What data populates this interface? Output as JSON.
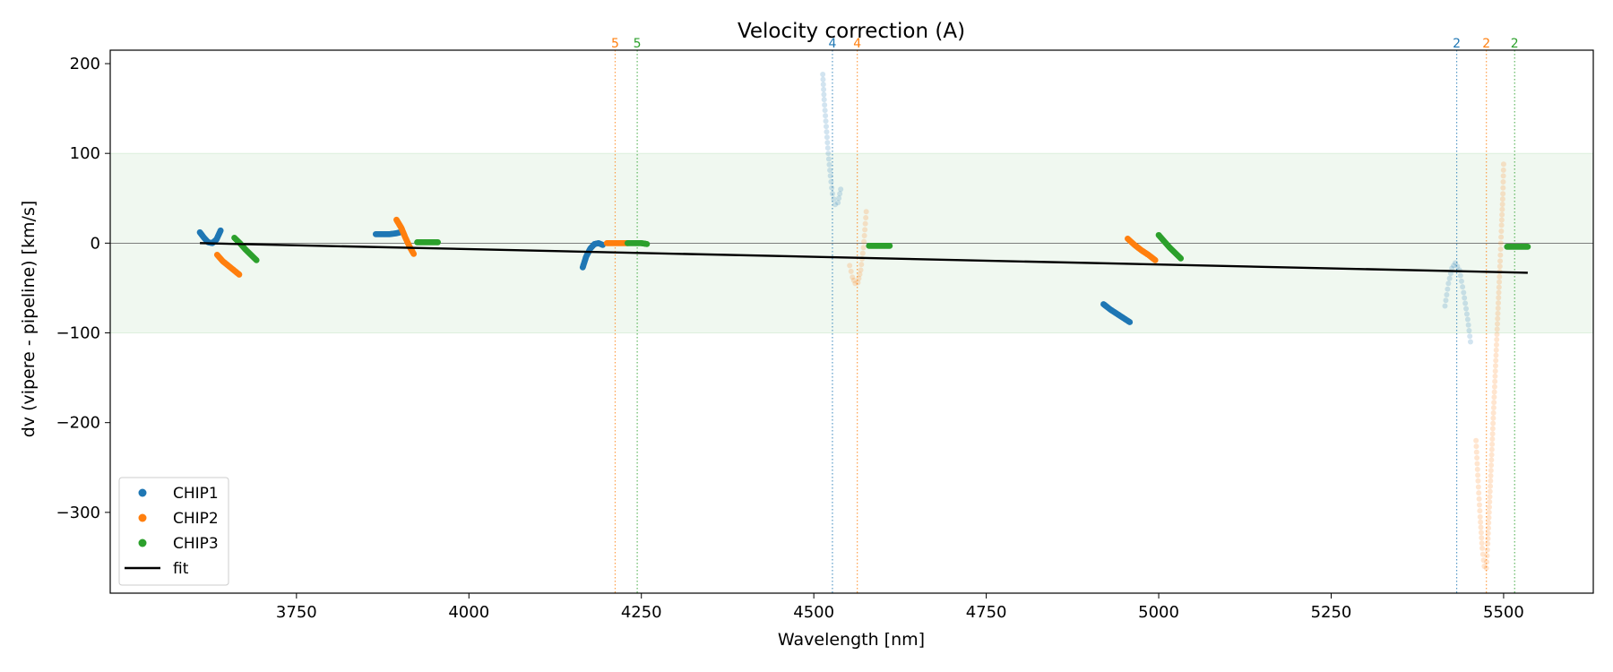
{
  "chart_data": {
    "type": "scatter",
    "title": "Velocity correction (A)",
    "xlabel": "Wavelength [nm]",
    "ylabel": "dv (vipere - pipeline) [km/s]",
    "xlim": [
      3480,
      5630
    ],
    "ylim": [
      -390,
      215
    ],
    "xticks": [
      3750,
      4000,
      4250,
      4500,
      4750,
      5000,
      5250,
      5500
    ],
    "yticks": [
      200,
      100,
      0,
      -100,
      -200,
      -300
    ],
    "ytick_labels": [
      "200",
      "100",
      "0",
      "−100",
      "−200",
      "−300"
    ],
    "tolerance_band": [
      -100,
      100
    ],
    "band_color": "#2ca02c",
    "zero_line": 0,
    "colors": {
      "CHIP1": "#1f77b4",
      "CHIP2": "#ff7f0e",
      "CHIP3": "#2ca02c"
    },
    "segments": [
      {
        "chip": "CHIP1",
        "faded": false,
        "points": [
          [
            3610,
            12
          ],
          [
            3616,
            6
          ],
          [
            3622,
            1
          ],
          [
            3628,
            0
          ],
          [
            3634,
            4
          ],
          [
            3640,
            14
          ]
        ]
      },
      {
        "chip": "CHIP2",
        "faded": false,
        "points": [
          [
            3635,
            -13
          ],
          [
            3643,
            -20
          ],
          [
            3651,
            -25
          ],
          [
            3659,
            -30
          ],
          [
            3667,
            -35
          ]
        ]
      },
      {
        "chip": "CHIP3",
        "faded": false,
        "points": [
          [
            3660,
            6
          ],
          [
            3668,
            0
          ],
          [
            3676,
            -7
          ],
          [
            3684,
            -13
          ],
          [
            3692,
            -19
          ]
        ]
      },
      {
        "chip": "CHIP1",
        "faded": false,
        "points": [
          [
            3865,
            10
          ],
          [
            3875,
            10
          ],
          [
            3885,
            10
          ],
          [
            3895,
            11
          ],
          [
            3900,
            12
          ]
        ]
      },
      {
        "chip": "CHIP2",
        "faded": false,
        "points": [
          [
            3895,
            26
          ],
          [
            3902,
            17
          ],
          [
            3908,
            6
          ],
          [
            3914,
            -4
          ],
          [
            3920,
            -12
          ]
        ]
      },
      {
        "chip": "CHIP3",
        "faded": false,
        "points": [
          [
            3925,
            1
          ],
          [
            3935,
            1
          ],
          [
            3945,
            1
          ],
          [
            3955,
            1
          ]
        ]
      },
      {
        "chip": "CHIP1",
        "faded": false,
        "points": [
          [
            4165,
            -27
          ],
          [
            4170,
            -15
          ],
          [
            4176,
            -6
          ],
          [
            4182,
            -1
          ],
          [
            4188,
            0
          ],
          [
            4194,
            -2
          ]
        ]
      },
      {
        "chip": "CHIP2",
        "faded": false,
        "points": [
          [
            4200,
            0
          ],
          [
            4210,
            0
          ],
          [
            4220,
            0
          ],
          [
            4230,
            0
          ]
        ]
      },
      {
        "chip": "CHIP3",
        "faded": false,
        "points": [
          [
            4230,
            0
          ],
          [
            4240,
            0
          ],
          [
            4250,
            0
          ],
          [
            4258,
            -1
          ]
        ]
      },
      {
        "chip": "CHIP1",
        "faded": true,
        "points": [
          [
            4513,
            188
          ],
          [
            4515,
            160
          ],
          [
            4518,
            130
          ],
          [
            4521,
            100
          ],
          [
            4524,
            75
          ],
          [
            4527,
            55
          ],
          [
            4531,
            43
          ],
          [
            4535,
            45
          ],
          [
            4539,
            60
          ]
        ]
      },
      {
        "chip": "CHIP2",
        "faded": true,
        "points": [
          [
            4552,
            -25
          ],
          [
            4556,
            -38
          ],
          [
            4560,
            -45
          ],
          [
            4564,
            -44
          ],
          [
            4568,
            -30
          ],
          [
            4572,
            -5
          ],
          [
            4576,
            35
          ]
        ]
      },
      {
        "chip": "CHIP3",
        "faded": false,
        "points": [
          [
            4580,
            -3
          ],
          [
            4590,
            -3
          ],
          [
            4600,
            -3
          ],
          [
            4610,
            -3
          ]
        ]
      },
      {
        "chip": "CHIP1",
        "faded": false,
        "points": [
          [
            4920,
            -68
          ],
          [
            4930,
            -74
          ],
          [
            4940,
            -79
          ],
          [
            4950,
            -84
          ],
          [
            4958,
            -88
          ]
        ]
      },
      {
        "chip": "CHIP2",
        "faded": false,
        "points": [
          [
            4955,
            5
          ],
          [
            4965,
            -2
          ],
          [
            4975,
            -8
          ],
          [
            4985,
            -13
          ],
          [
            4995,
            -19
          ]
        ]
      },
      {
        "chip": "CHIP3",
        "faded": false,
        "points": [
          [
            5000,
            9
          ],
          [
            5008,
            2
          ],
          [
            5016,
            -5
          ],
          [
            5024,
            -11
          ],
          [
            5032,
            -17
          ]
        ]
      },
      {
        "chip": "CHIP1",
        "faded": true,
        "points": [
          [
            5415,
            -70
          ],
          [
            5420,
            -45
          ],
          [
            5425,
            -28
          ],
          [
            5430,
            -22
          ],
          [
            5436,
            -30
          ],
          [
            5442,
            -55
          ],
          [
            5448,
            -85
          ],
          [
            5452,
            -110
          ]
        ]
      },
      {
        "chip": "CHIP2",
        "faded": true,
        "points": [
          [
            5460,
            -220
          ],
          [
            5463,
            -265
          ],
          [
            5466,
            -305
          ],
          [
            5469,
            -340
          ],
          [
            5472,
            -360
          ],
          [
            5475,
            -362
          ],
          [
            5477,
            -335
          ],
          [
            5479,
            -300
          ],
          [
            5481,
            -265
          ],
          [
            5483,
            -230
          ],
          [
            5485,
            -195
          ],
          [
            5487,
            -160
          ],
          [
            5489,
            -125
          ],
          [
            5491,
            -90
          ],
          [
            5493,
            -55
          ],
          [
            5495,
            -20
          ],
          [
            5497,
            20
          ],
          [
            5499,
            55
          ],
          [
            5500,
            88
          ]
        ]
      },
      {
        "chip": "CHIP3",
        "faded": false,
        "points": [
          [
            5505,
            -4
          ],
          [
            5515,
            -4
          ],
          [
            5525,
            -4
          ],
          [
            5535,
            -4
          ]
        ]
      }
    ],
    "fit": {
      "name": "fit",
      "x": [
        3610,
        5535
      ],
      "y": [
        0,
        -33
      ],
      "color": "#000000"
    },
    "order_markers": [
      {
        "x": 4212,
        "label": "5",
        "chip": "CHIP2"
      },
      {
        "x": 4244,
        "label": "5",
        "chip": "CHIP3"
      },
      {
        "x": 4527,
        "label": "4",
        "chip": "CHIP1"
      },
      {
        "x": 4563,
        "label": "4",
        "chip": "CHIP2"
      },
      {
        "x": 5432,
        "label": "2",
        "chip": "CHIP1"
      },
      {
        "x": 5475,
        "label": "2",
        "chip": "CHIP2"
      },
      {
        "x": 5516,
        "label": "2",
        "chip": "CHIP3"
      }
    ],
    "legend": {
      "location": "lower-left",
      "entries": [
        {
          "label": "CHIP1",
          "kind": "dot",
          "chip": "CHIP1"
        },
        {
          "label": "CHIP2",
          "kind": "dot",
          "chip": "CHIP2"
        },
        {
          "label": "CHIP3",
          "kind": "dot",
          "chip": "CHIP3"
        },
        {
          "label": "fit",
          "kind": "line",
          "chip": ""
        }
      ]
    }
  }
}
